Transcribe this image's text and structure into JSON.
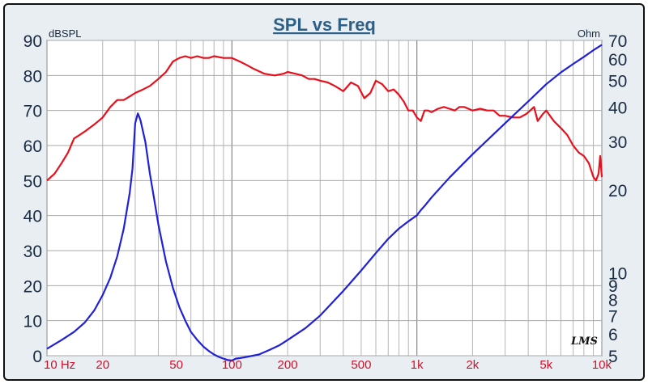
{
  "chart_data": {
    "type": "line",
    "title": "SPL vs Freq",
    "left_axis": {
      "unit": "dBSPL",
      "ticks": [
        "0",
        "10",
        "20",
        "30",
        "40",
        "50",
        "60",
        "70",
        "80",
        "90"
      ],
      "range": [
        0,
        90
      ]
    },
    "right_axis": {
      "unit": "Ohm",
      "scale": "log",
      "ticks": [
        "5",
        "6",
        "7",
        "8",
        "9",
        "10",
        "20",
        "30",
        "40",
        "50",
        "60",
        "70"
      ],
      "range": [
        5,
        70
      ]
    },
    "x_axis": {
      "scale": "log",
      "range": [
        10,
        10000
      ],
      "ticks": [
        {
          "value": 10,
          "label": "10 Hz"
        },
        {
          "value": 20,
          "label": "20"
        },
        {
          "value": 50,
          "label": "50"
        },
        {
          "value": 100,
          "label": "100"
        },
        {
          "value": 200,
          "label": "200"
        },
        {
          "value": 500,
          "label": "500"
        },
        {
          "value": 1000,
          "label": "1k"
        },
        {
          "value": 2000,
          "label": "2k"
        },
        {
          "value": 5000,
          "label": "5k"
        },
        {
          "value": 10000,
          "label": "10k"
        }
      ]
    },
    "grid": true,
    "series": [
      {
        "axis": "left",
        "color": "#e8101c",
        "x": [
          10,
          11,
          12,
          13,
          14,
          15,
          16,
          17,
          18,
          19,
          20,
          22,
          24,
          26,
          28,
          30,
          33,
          36,
          40,
          44,
          48,
          52,
          56,
          60,
          65,
          70,
          75,
          80,
          90,
          100,
          110,
          120,
          130,
          150,
          170,
          190,
          200,
          220,
          240,
          260,
          280,
          300,
          330,
          360,
          400,
          440,
          480,
          520,
          560,
          600,
          650,
          700,
          750,
          800,
          850,
          900,
          950,
          1000,
          1050,
          1100,
          1150,
          1200,
          1300,
          1400,
          1500,
          1600,
          1700,
          1800,
          1900,
          2000,
          2200,
          2400,
          2600,
          2800,
          3000,
          3300,
          3600,
          3900,
          4100,
          4300,
          4500,
          4800,
          5000,
          5500,
          6000,
          6500,
          7000,
          7500,
          8000,
          8500,
          9000,
          9300,
          9600,
          9800,
          10000
        ],
        "values": [
          50,
          52,
          55,
          58,
          62,
          63,
          64,
          65,
          66,
          67,
          68,
          71,
          73,
          73,
          74,
          75,
          76,
          77,
          79,
          81,
          84,
          85,
          85.5,
          85,
          85.5,
          85,
          85,
          85.5,
          85,
          85,
          84,
          83,
          82,
          80.5,
          80,
          80.5,
          81,
          80.5,
          80,
          79,
          79,
          78.5,
          78,
          77,
          75.5,
          78,
          77,
          73.5,
          75,
          78.5,
          77.5,
          75.5,
          76,
          74.5,
          72.5,
          70,
          70,
          68,
          67,
          70,
          70,
          69.5,
          70.5,
          71,
          70.5,
          70,
          71,
          71,
          70.5,
          70,
          70.5,
          70,
          70,
          68.5,
          68.5,
          68,
          68,
          69,
          70,
          71,
          67,
          69,
          70,
          67,
          65,
          63,
          60,
          58,
          57,
          55,
          51,
          50,
          52,
          57,
          51
        ]
      },
      {
        "axis": "right",
        "color": "#2020d8",
        "x": [
          10,
          12,
          14,
          16,
          18,
          20,
          22,
          24,
          26,
          28,
          29,
          30,
          31,
          32,
          34,
          36,
          38,
          40,
          44,
          48,
          52,
          56,
          60,
          65,
          70,
          75,
          80,
          85,
          90,
          95,
          100,
          105,
          110,
          120,
          140,
          160,
          180,
          200,
          250,
          300,
          400,
          500,
          600,
          700,
          800,
          900,
          1000,
          1050,
          1100,
          1200,
          1500,
          2000,
          3000,
          4000,
          5000,
          6000,
          7000,
          8000,
          9000,
          10000
        ],
        "values": [
          5.3,
          5.7,
          6.1,
          6.6,
          7.3,
          8.3,
          9.6,
          11.5,
          14.5,
          19.5,
          24,
          35,
          38,
          36,
          30,
          23,
          18.5,
          15,
          11,
          8.8,
          7.5,
          6.7,
          6.1,
          5.7,
          5.4,
          5.2,
          5.05,
          4.95,
          4.88,
          4.82,
          4.8,
          4.88,
          4.9,
          4.95,
          5.05,
          5.25,
          5.45,
          5.7,
          6.3,
          7,
          8.6,
          10.2,
          11.8,
          13.3,
          14.5,
          15.4,
          16.2,
          16.9,
          17.5,
          18.8,
          22.2,
          27,
          35,
          42,
          48.5,
          53.5,
          57.5,
          61,
          64.5,
          67.5
        ]
      }
    ],
    "logo": "LMS"
  }
}
